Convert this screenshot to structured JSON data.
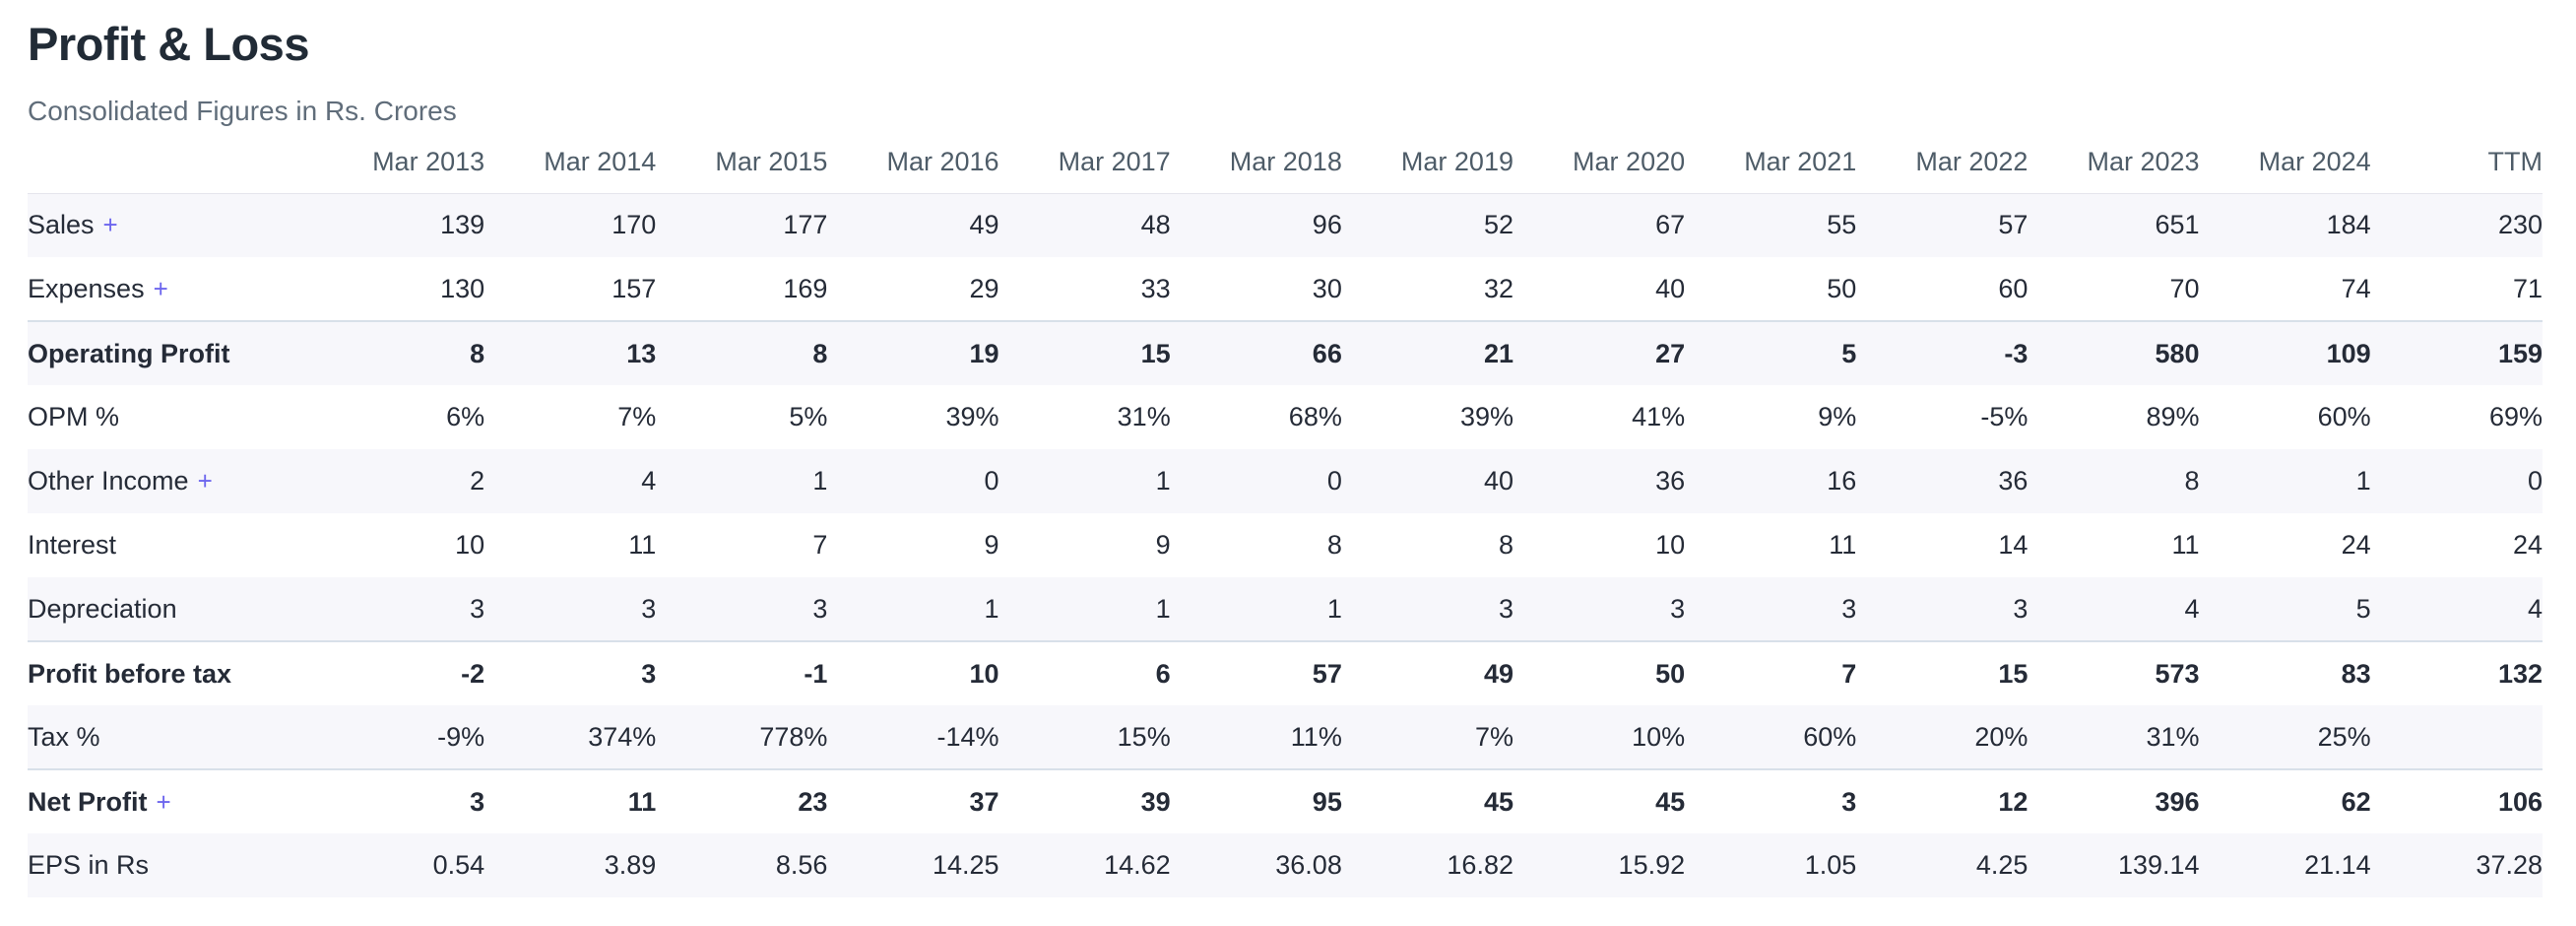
{
  "header": {
    "title": "Profit & Loss",
    "subtitle": "Consolidated Figures in Rs. Crores"
  },
  "colors": {
    "accent": "#6d66ee",
    "row_stripe": "#f7f7fb",
    "strong_row_border": "#d8e0e9",
    "header_border": "#e5e5ed",
    "title_text": "#212b36",
    "subtitle_text": "#606d7a",
    "header_text": "#4e5c68",
    "body_text": "#252b37"
  },
  "table": {
    "expand_symbol": "+",
    "columns": [
      "Mar 2013",
      "Mar 2014",
      "Mar 2015",
      "Mar 2016",
      "Mar 2017",
      "Mar 2018",
      "Mar 2019",
      "Mar 2020",
      "Mar 2021",
      "Mar 2022",
      "Mar 2023",
      "Mar 2024",
      "TTM"
    ],
    "rows": [
      {
        "label": "Sales",
        "expandable": true,
        "strong": false,
        "values": [
          "139",
          "170",
          "177",
          "49",
          "48",
          "96",
          "52",
          "67",
          "55",
          "57",
          "651",
          "184",
          "230"
        ]
      },
      {
        "label": "Expenses",
        "expandable": true,
        "strong": false,
        "values": [
          "130",
          "157",
          "169",
          "29",
          "33",
          "30",
          "32",
          "40",
          "50",
          "60",
          "70",
          "74",
          "71"
        ]
      },
      {
        "label": "Operating Profit",
        "expandable": false,
        "strong": true,
        "values": [
          "8",
          "13",
          "8",
          "19",
          "15",
          "66",
          "21",
          "27",
          "5",
          "-3",
          "580",
          "109",
          "159"
        ]
      },
      {
        "label": "OPM %",
        "expandable": false,
        "strong": false,
        "values": [
          "6%",
          "7%",
          "5%",
          "39%",
          "31%",
          "68%",
          "39%",
          "41%",
          "9%",
          "-5%",
          "89%",
          "60%",
          "69%"
        ]
      },
      {
        "label": "Other Income",
        "expandable": true,
        "strong": false,
        "values": [
          "2",
          "4",
          "1",
          "0",
          "1",
          "0",
          "40",
          "36",
          "16",
          "36",
          "8",
          "1",
          "0"
        ]
      },
      {
        "label": "Interest",
        "expandable": false,
        "strong": false,
        "values": [
          "10",
          "11",
          "7",
          "9",
          "9",
          "8",
          "8",
          "10",
          "11",
          "14",
          "11",
          "24",
          "24"
        ]
      },
      {
        "label": "Depreciation",
        "expandable": false,
        "strong": false,
        "values": [
          "3",
          "3",
          "3",
          "1",
          "1",
          "1",
          "3",
          "3",
          "3",
          "3",
          "4",
          "5",
          "4"
        ]
      },
      {
        "label": "Profit before tax",
        "expandable": false,
        "strong": true,
        "values": [
          "-2",
          "3",
          "-1",
          "10",
          "6",
          "57",
          "49",
          "50",
          "7",
          "15",
          "573",
          "83",
          "132"
        ]
      },
      {
        "label": "Tax %",
        "expandable": false,
        "strong": false,
        "values": [
          "-9%",
          "374%",
          "778%",
          "-14%",
          "15%",
          "11%",
          "7%",
          "10%",
          "60%",
          "20%",
          "31%",
          "25%",
          ""
        ]
      },
      {
        "label": "Net Profit",
        "expandable": true,
        "strong": true,
        "values": [
          "3",
          "11",
          "23",
          "37",
          "39",
          "95",
          "45",
          "45",
          "3",
          "12",
          "396",
          "62",
          "106"
        ]
      },
      {
        "label": "EPS in Rs",
        "expandable": false,
        "strong": false,
        "values": [
          "0.54",
          "3.89",
          "8.56",
          "14.25",
          "14.62",
          "36.08",
          "16.82",
          "15.92",
          "1.05",
          "4.25",
          "139.14",
          "21.14",
          "37.28"
        ]
      }
    ]
  }
}
